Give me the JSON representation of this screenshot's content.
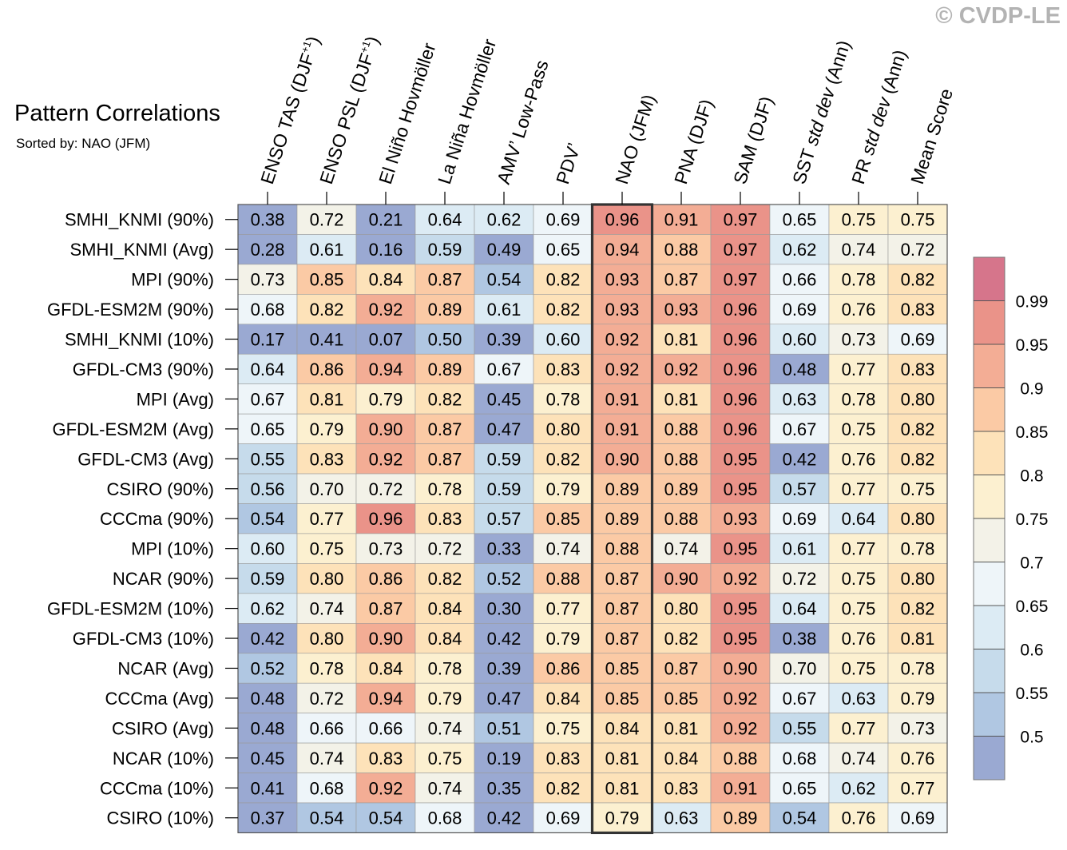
{
  "title": "Pattern Correlations",
  "subtitle": "Sorted by: NAO (JFM)",
  "watermark": "© CVDP-LE",
  "chart_data": {
    "type": "heatmap",
    "highlight_column": "NAO (JFM)",
    "columns": [
      {
        "label": "ENSO TAS (DJF",
        "sup": "+1",
        "suffix": ")",
        "italic_part": ""
      },
      {
        "label": "ENSO PSL (DJF",
        "sup": "+1",
        "suffix": ")",
        "italic_part": ""
      },
      {
        "label": "El Niño Hovmöller",
        "sup": "",
        "suffix": "",
        "italic_part": ""
      },
      {
        "label": "La Niña Hovmöller",
        "sup": "",
        "suffix": "",
        "italic_part": ""
      },
      {
        "label": "AMV’ Low-Pass",
        "sup": "",
        "suffix": "",
        "italic_part": ""
      },
      {
        "label": "PDV’",
        "sup": "",
        "suffix": "",
        "italic_part": ""
      },
      {
        "label": "NAO (JFM)",
        "sup": "",
        "suffix": "",
        "italic_part": ""
      },
      {
        "label": "PNA (DJF)",
        "sup": "",
        "suffix": "",
        "italic_part": ""
      },
      {
        "label": "SAM (DJF)",
        "sup": "",
        "suffix": "",
        "italic_part": ""
      },
      {
        "label": "SST ",
        "sup": "",
        "suffix": " (Ann)",
        "italic_part": "std dev"
      },
      {
        "label": "PR ",
        "sup": "",
        "suffix": " (Ann)",
        "italic_part": "std dev"
      },
      {
        "label": "Mean Score",
        "sup": "",
        "suffix": "",
        "italic_part": ""
      }
    ],
    "rows": [
      "SMHI_KNMI (90%)",
      "SMHI_KNMI (Avg)",
      "MPI (90%)",
      "GFDL-ESM2M (90%)",
      "SMHI_KNMI (10%)",
      "GFDL-CM3 (90%)",
      "MPI (Avg)",
      "GFDL-ESM2M (Avg)",
      "GFDL-CM3 (Avg)",
      "CSIRO (90%)",
      "CCCma (90%)",
      "MPI (10%)",
      "NCAR (90%)",
      "GFDL-ESM2M (10%)",
      "GFDL-CM3 (10%)",
      "NCAR (Avg)",
      "CCCma (Avg)",
      "CSIRO (Avg)",
      "NCAR (10%)",
      "CCCma (10%)",
      "CSIRO (10%)"
    ],
    "values": [
      [
        "0.38",
        "0.72",
        "0.21",
        "0.64",
        "0.62",
        "0.69",
        "0.96",
        "0.91",
        "0.97",
        "0.65",
        "0.75",
        "0.75"
      ],
      [
        "0.28",
        "0.61",
        "0.16",
        "0.59",
        "0.49",
        "0.65",
        "0.94",
        "0.88",
        "0.97",
        "0.62",
        "0.74",
        "0.72"
      ],
      [
        "0.73",
        "0.85",
        "0.84",
        "0.87",
        "0.54",
        "0.82",
        "0.93",
        "0.87",
        "0.97",
        "0.66",
        "0.78",
        "0.82"
      ],
      [
        "0.68",
        "0.82",
        "0.92",
        "0.89",
        "0.61",
        "0.82",
        "0.93",
        "0.93",
        "0.96",
        "0.69",
        "0.76",
        "0.83"
      ],
      [
        "0.17",
        "0.41",
        "0.07",
        "0.50",
        "0.39",
        "0.60",
        "0.92",
        "0.81",
        "0.96",
        "0.60",
        "0.73",
        "0.69"
      ],
      [
        "0.64",
        "0.86",
        "0.94",
        "0.89",
        "0.67",
        "0.83",
        "0.92",
        "0.92",
        "0.96",
        "0.48",
        "0.77",
        "0.83"
      ],
      [
        "0.67",
        "0.81",
        "0.79",
        "0.82",
        "0.45",
        "0.78",
        "0.91",
        "0.81",
        "0.96",
        "0.63",
        "0.78",
        "0.80"
      ],
      [
        "0.65",
        "0.79",
        "0.90",
        "0.87",
        "0.47",
        "0.80",
        "0.91",
        "0.88",
        "0.96",
        "0.67",
        "0.75",
        "0.82"
      ],
      [
        "0.55",
        "0.83",
        "0.92",
        "0.87",
        "0.59",
        "0.82",
        "0.90",
        "0.88",
        "0.95",
        "0.42",
        "0.76",
        "0.82"
      ],
      [
        "0.56",
        "0.70",
        "0.72",
        "0.78",
        "0.59",
        "0.79",
        "0.89",
        "0.89",
        "0.95",
        "0.57",
        "0.77",
        "0.75"
      ],
      [
        "0.54",
        "0.77",
        "0.96",
        "0.83",
        "0.57",
        "0.85",
        "0.89",
        "0.88",
        "0.93",
        "0.69",
        "0.64",
        "0.80"
      ],
      [
        "0.60",
        "0.75",
        "0.73",
        "0.72",
        "0.33",
        "0.74",
        "0.88",
        "0.74",
        "0.95",
        "0.61",
        "0.77",
        "0.78"
      ],
      [
        "0.59",
        "0.80",
        "0.86",
        "0.82",
        "0.52",
        "0.88",
        "0.87",
        "0.90",
        "0.92",
        "0.72",
        "0.75",
        "0.80"
      ],
      [
        "0.62",
        "0.74",
        "0.87",
        "0.84",
        "0.30",
        "0.77",
        "0.87",
        "0.80",
        "0.95",
        "0.64",
        "0.75",
        "0.82"
      ],
      [
        "0.42",
        "0.80",
        "0.90",
        "0.84",
        "0.42",
        "0.79",
        "0.87",
        "0.82",
        "0.95",
        "0.38",
        "0.76",
        "0.81"
      ],
      [
        "0.52",
        "0.78",
        "0.84",
        "0.78",
        "0.39",
        "0.86",
        "0.85",
        "0.87",
        "0.90",
        "0.70",
        "0.75",
        "0.78"
      ],
      [
        "0.48",
        "0.72",
        "0.94",
        "0.79",
        "0.47",
        "0.84",
        "0.85",
        "0.85",
        "0.92",
        "0.67",
        "0.63",
        "0.79"
      ],
      [
        "0.48",
        "0.66",
        "0.66",
        "0.74",
        "0.51",
        "0.75",
        "0.84",
        "0.81",
        "0.92",
        "0.55",
        "0.77",
        "0.73"
      ],
      [
        "0.45",
        "0.74",
        "0.83",
        "0.75",
        "0.19",
        "0.83",
        "0.81",
        "0.84",
        "0.88",
        "0.68",
        "0.74",
        "0.76"
      ],
      [
        "0.41",
        "0.68",
        "0.92",
        "0.74",
        "0.35",
        "0.82",
        "0.81",
        "0.83",
        "0.91",
        "0.65",
        "0.62",
        "0.77"
      ],
      [
        "0.37",
        "0.54",
        "0.54",
        "0.68",
        "0.42",
        "0.69",
        "0.79",
        "0.63",
        "0.89",
        "0.54",
        "0.76",
        "0.69"
      ]
    ],
    "colorbar": {
      "levels": [
        "0.5",
        "0.55",
        "0.6",
        "0.65",
        "0.7",
        "0.75",
        "0.8",
        "0.85",
        "0.9",
        "0.95",
        "0.99"
      ],
      "colors": [
        "#9aa9d2",
        "#b0c7e2",
        "#c6dbeb",
        "#dcebf4",
        "#eef5f9",
        "#f3f2e8",
        "#fcf0d0",
        "#fde2b9",
        "#fbcaa5",
        "#f3ad95",
        "#ea9389",
        "#d6758b"
      ]
    }
  }
}
